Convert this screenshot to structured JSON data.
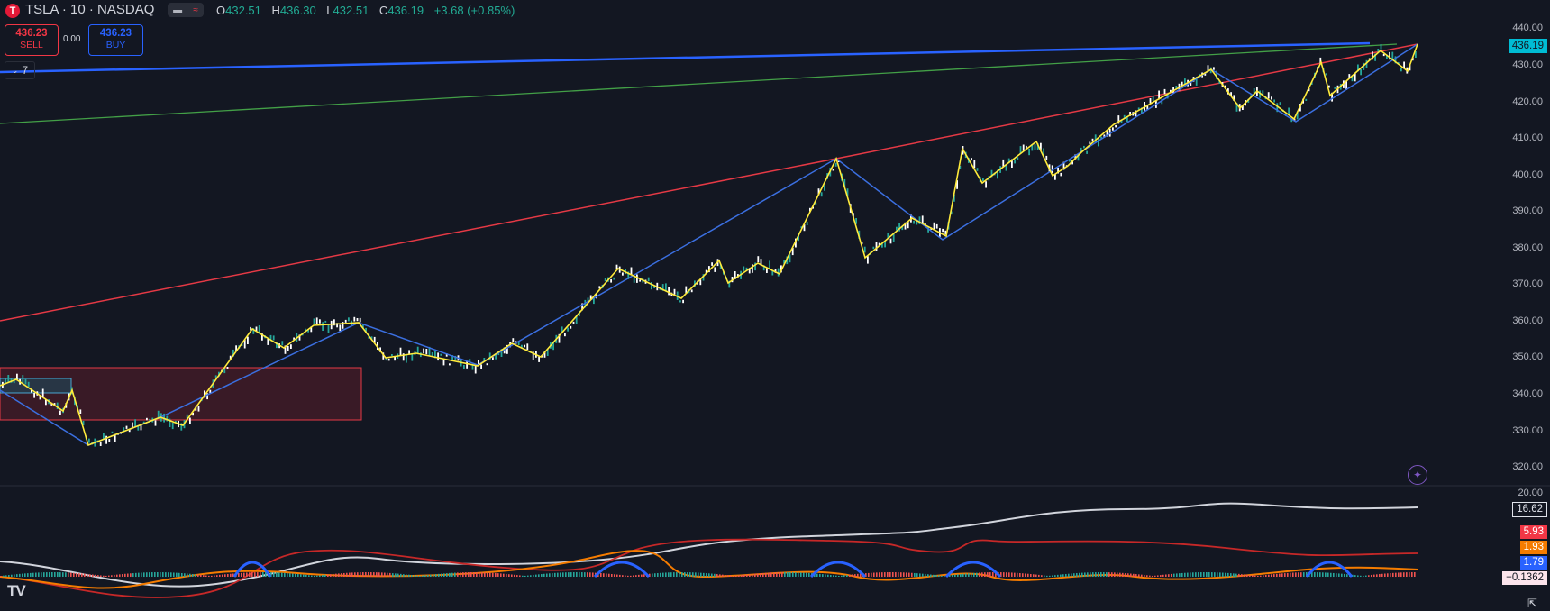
{
  "header": {
    "logo_letter": "T",
    "symbol": "TSLA · 10 · NASDAQ",
    "ohlc": {
      "o_label": "O",
      "o": "432.51",
      "h_label": "H",
      "h": "436.30",
      "l_label": "L",
      "l": "432.51",
      "c_label": "C",
      "c": "436.19",
      "change": "+3.68 (+0.85%)"
    }
  },
  "trade": {
    "sell_price": "436.23",
    "sell_label": "SELL",
    "spread": "0.00",
    "buy_price": "436.23",
    "buy_label": "BUY",
    "collapse_count": "7"
  },
  "price_axis": [
    "440.00",
    "430.00",
    "420.00",
    "410.00",
    "400.00",
    "390.00",
    "380.00",
    "370.00",
    "360.00",
    "350.00",
    "340.00",
    "330.00",
    "320.00"
  ],
  "last_price": "436.19",
  "indicator_axis": {
    "top": "20.00",
    "adx": "16.62",
    "v1": "5.93",
    "v2": "1.93",
    "v3": "1.79",
    "v4": "−0.1362"
  },
  "colors": {
    "up": "#26a69a",
    "down": "#ef5350",
    "zigzag": "#ffeb3b",
    "trend": "#2962ff",
    "red_line": "#e53945",
    "green_line": "#43a047"
  },
  "icons": {
    "logo": "tesla-logo-icon",
    "star": "sparkle-icon",
    "tv": "tradingview-logo-icon"
  }
}
